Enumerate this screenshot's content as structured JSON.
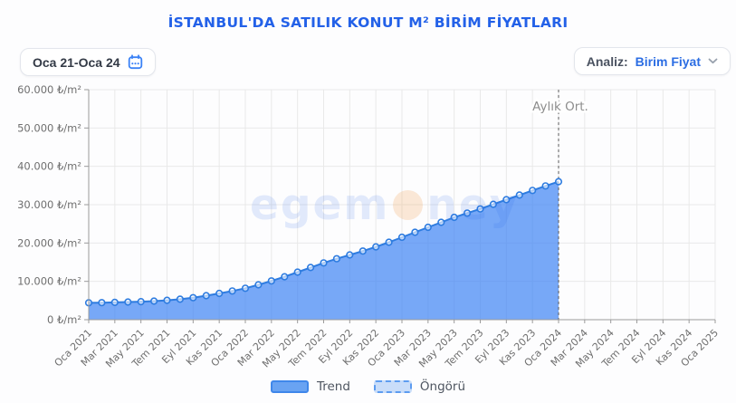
{
  "header": {
    "title": "İSTANBUL'DA SATILIK KONUT M² BİRİM FİYATLARI"
  },
  "controls": {
    "date_range": {
      "value": "Oca 21-Oca 24",
      "icon": "calendar-icon"
    },
    "analysis": {
      "label": "Analiz:",
      "value": "Birim Fiyat",
      "icon": "chevron-down-icon"
    }
  },
  "watermark": {
    "part1": "egem",
    "part2": "ney"
  },
  "legend": {
    "trend": "Trend",
    "forecast": "Öngörü"
  },
  "chart_data": {
    "type": "area",
    "title": "İSTANBUL'DA SATILIK KONUT M² BİRİM FİYATLARI",
    "ylabel_unit": "₺/m²",
    "ylim": [
      0,
      60000
    ],
    "x_range_months": 48,
    "grid": true,
    "legend_position": "bottom",
    "yticks": [
      {
        "value": 0,
        "label": "0 ₺/m²"
      },
      {
        "value": 10000,
        "label": "10.000 ₺/m²"
      },
      {
        "value": 20000,
        "label": "20.000 ₺/m²"
      },
      {
        "value": 30000,
        "label": "30.000 ₺/m²"
      },
      {
        "value": 40000,
        "label": "40.000 ₺/m²"
      },
      {
        "value": 50000,
        "label": "50.000 ₺/m²"
      },
      {
        "value": 60000,
        "label": "60.000 ₺/m²"
      }
    ],
    "xticks": [
      {
        "index": 0,
        "label": "Oca 2021"
      },
      {
        "index": 2,
        "label": "Mar 2021"
      },
      {
        "index": 4,
        "label": "May 2021"
      },
      {
        "index": 6,
        "label": "Tem 2021"
      },
      {
        "index": 8,
        "label": "Eyl 2021"
      },
      {
        "index": 10,
        "label": "Kas 2021"
      },
      {
        "index": 12,
        "label": "Oca 2022"
      },
      {
        "index": 14,
        "label": "Mar 2022"
      },
      {
        "index": 16,
        "label": "May 2022"
      },
      {
        "index": 18,
        "label": "Tem 2022"
      },
      {
        "index": 20,
        "label": "Eyl 2022"
      },
      {
        "index": 22,
        "label": "Kas 2022"
      },
      {
        "index": 24,
        "label": "Oca 2023"
      },
      {
        "index": 26,
        "label": "Mar 2023"
      },
      {
        "index": 28,
        "label": "May 2023"
      },
      {
        "index": 30,
        "label": "Tem 2023"
      },
      {
        "index": 32,
        "label": "Eyl 2023"
      },
      {
        "index": 34,
        "label": "Kas 2023"
      },
      {
        "index": 36,
        "label": "Oca 2024"
      },
      {
        "index": 38,
        "label": "Mar 2024"
      },
      {
        "index": 40,
        "label": "May 2024"
      },
      {
        "index": 42,
        "label": "Tem 2024"
      },
      {
        "index": 44,
        "label": "Eyl 2024"
      },
      {
        "index": 46,
        "label": "Kas 2024"
      },
      {
        "index": 48,
        "label": "Oca 2025"
      }
    ],
    "months": [
      "Oca 2021",
      "Şub 2021",
      "Mar 2021",
      "Nis 2021",
      "May 2021",
      "Haz 2021",
      "Tem 2021",
      "Ağu 2021",
      "Eyl 2021",
      "Eki 2021",
      "Kas 2021",
      "Ara 2021",
      "Oca 2022",
      "Şub 2022",
      "Mar 2022",
      "Nis 2022",
      "May 2022",
      "Haz 2022",
      "Tem 2022",
      "Ağu 2022",
      "Eyl 2022",
      "Eki 2022",
      "Kas 2022",
      "Ara 2022",
      "Oca 2023",
      "Şub 2023",
      "Mar 2023",
      "Nis 2023",
      "May 2023",
      "Haz 2023",
      "Tem 2023",
      "Ağu 2023",
      "Eyl 2023",
      "Eki 2023",
      "Kas 2023",
      "Ara 2023",
      "Oca 2024"
    ],
    "series": [
      {
        "name": "Trend",
        "values": [
          4400,
          4450,
          4500,
          4600,
          4700,
          4850,
          5050,
          5350,
          5750,
          6250,
          6850,
          7500,
          8200,
          9100,
          10100,
          11200,
          12400,
          13600,
          14800,
          15900,
          16900,
          17900,
          19000,
          20200,
          21500,
          22800,
          24100,
          25400,
          26700,
          27800,
          28900,
          30100,
          31300,
          32500,
          33700,
          34900,
          36000
        ]
      },
      {
        "name": "Öngörü",
        "values": []
      }
    ],
    "annotation": {
      "label": "Aylık Ort.",
      "month_index": 36
    },
    "colors": {
      "area": "rgba(61,131,244,0.70)",
      "line": "#2e7ce0",
      "point_fill": "rgba(255,255,255,0.60)",
      "point_stroke": "#2e7ce0",
      "grid": "#e9e9e9",
      "axis": "#9b9b9b",
      "tick_text": "#6f6f6f",
      "annotation_line": "#5c5c5c",
      "annotation_text": "#8d8d8d",
      "title_blue": "#2361e8",
      "accent_blue": "#3b82f6"
    }
  }
}
